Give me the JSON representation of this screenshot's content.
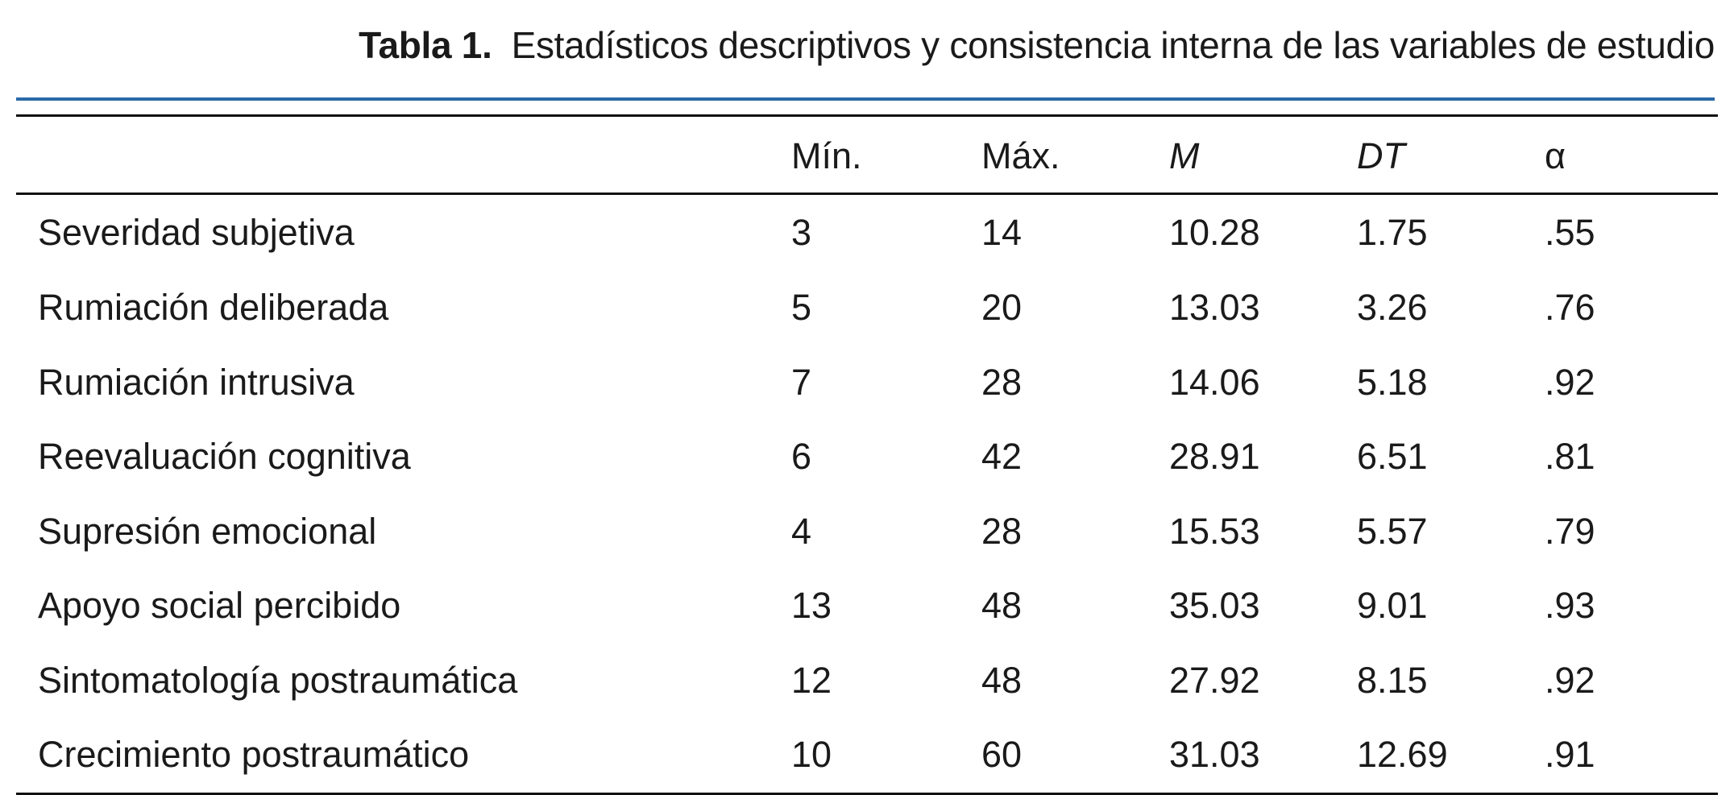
{
  "caption": {
    "label": "Tabla 1.",
    "title": "Estadísticos descriptivos y consistencia interna de las variables de estudio"
  },
  "table": {
    "headers": {
      "variable": "",
      "min": "Mín.",
      "max": "Máx.",
      "mean": "M",
      "sd": "DT",
      "alpha": "α"
    },
    "rows": [
      {
        "variable": "Severidad subjetiva",
        "min": "3",
        "max": "14",
        "mean": "10.28",
        "sd": "1.75",
        "alpha": ".55"
      },
      {
        "variable": "Rumiación deliberada",
        "min": "5",
        "max": "20",
        "mean": "13.03",
        "sd": "3.26",
        "alpha": ".76"
      },
      {
        "variable": "Rumiación intrusiva",
        "min": "7",
        "max": "28",
        "mean": "14.06",
        "sd": "5.18",
        "alpha": ".92"
      },
      {
        "variable": "Reevaluación cognitiva",
        "min": "6",
        "max": "42",
        "mean": "28.91",
        "sd": "6.51",
        "alpha": ".81"
      },
      {
        "variable": "Supresión emocional",
        "min": "4",
        "max": "28",
        "mean": "15.53",
        "sd": "5.57",
        "alpha": ".79"
      },
      {
        "variable": "Apoyo social percibido",
        "min": "13",
        "max": "48",
        "mean": "35.03",
        "sd": "9.01",
        "alpha": ".93"
      },
      {
        "variable": "Sintomatología postraumática",
        "min": "12",
        "max": "48",
        "mean": "27.92",
        "sd": "8.15",
        "alpha": ".92"
      },
      {
        "variable": "Crecimiento postraumático",
        "min": "10",
        "max": "60",
        "mean": "31.03",
        "sd": "12.69",
        "alpha": ".91"
      }
    ]
  },
  "colors": {
    "rule_accent": "#2a6aa8",
    "text": "#1a1a1a"
  }
}
